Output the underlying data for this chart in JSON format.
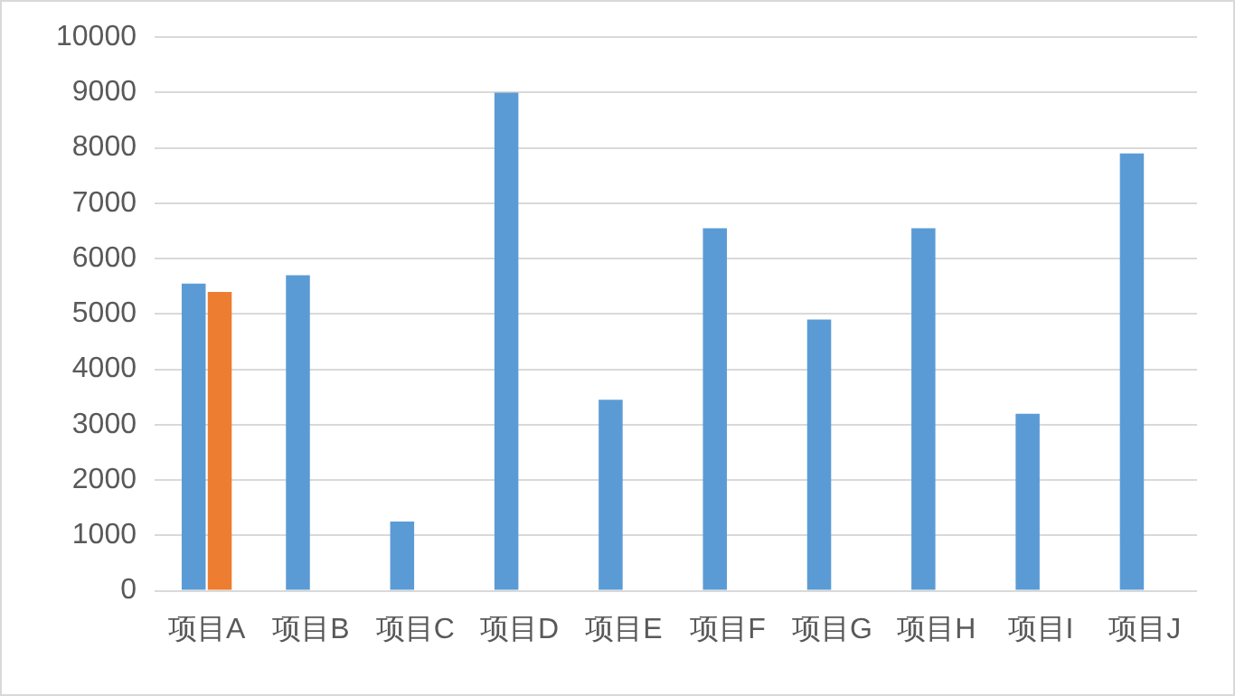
{
  "chart_data": {
    "type": "bar",
    "categories": [
      "项目A",
      "项目B",
      "项目C",
      "项目D",
      "项目E",
      "项目F",
      "项目G",
      "项目H",
      "项目I",
      "项目J"
    ],
    "series": [
      {
        "color": "#5b9bd5",
        "values": [
          5550,
          5700,
          1250,
          9000,
          3450,
          6550,
          4900,
          6550,
          3200,
          7900
        ]
      },
      {
        "color": "#ed7d31",
        "values": [
          5400,
          null,
          null,
          null,
          null,
          null,
          null,
          null,
          null,
          null
        ]
      }
    ],
    "ylim": [
      0,
      10000
    ],
    "yticks": [
      0,
      1000,
      2000,
      3000,
      4000,
      5000,
      6000,
      7000,
      8000,
      9000,
      10000
    ],
    "grid": "y",
    "legend": false
  }
}
